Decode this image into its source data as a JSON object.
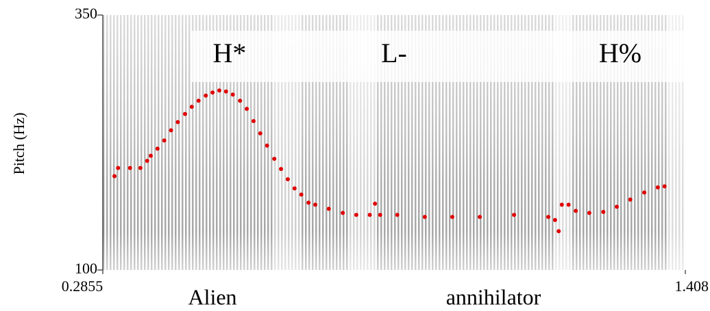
{
  "chart_data": {
    "type": "scatter",
    "y_label": "Pitch (Hz)",
    "x": [
      0.308,
      0.315,
      0.338,
      0.358,
      0.371,
      0.378,
      0.391,
      0.404,
      0.417,
      0.43,
      0.444,
      0.457,
      0.47,
      0.484,
      0.497,
      0.51,
      0.523,
      0.536,
      0.55,
      0.563,
      0.576,
      0.589,
      0.602,
      0.616,
      0.629,
      0.642,
      0.655,
      0.668,
      0.682,
      0.695,
      0.721,
      0.748,
      0.774,
      0.8,
      0.81,
      0.82,
      0.853,
      0.906,
      0.959,
      1.012,
      1.078,
      1.144,
      1.157,
      1.164,
      1.17,
      1.183,
      1.197,
      1.223,
      1.25,
      1.276,
      1.302,
      1.329,
      1.355,
      1.368
    ],
    "values": [
      192,
      200,
      200,
      200,
      207,
      212,
      219,
      227,
      237,
      245,
      253,
      260,
      266,
      271,
      274,
      276,
      275,
      272,
      266,
      258,
      246,
      234,
      222,
      209,
      199,
      189,
      180,
      174,
      166,
      164,
      160,
      156,
      154,
      154,
      165,
      154,
      154,
      152,
      152,
      152,
      154,
      152,
      149,
      138,
      164,
      164,
      158,
      156,
      157,
      162,
      169,
      176,
      181,
      182
    ],
    "color": "#e00000",
    "xlim": [
      0.2855,
      1.408
    ],
    "xticks": [
      0.2855,
      1.408
    ],
    "ylim": [
      100,
      350
    ],
    "yticks": [
      100,
      350
    ],
    "tones": [
      "H*",
      "L-",
      "H%"
    ],
    "words": [
      "Alien",
      "annihilator"
    ]
  }
}
